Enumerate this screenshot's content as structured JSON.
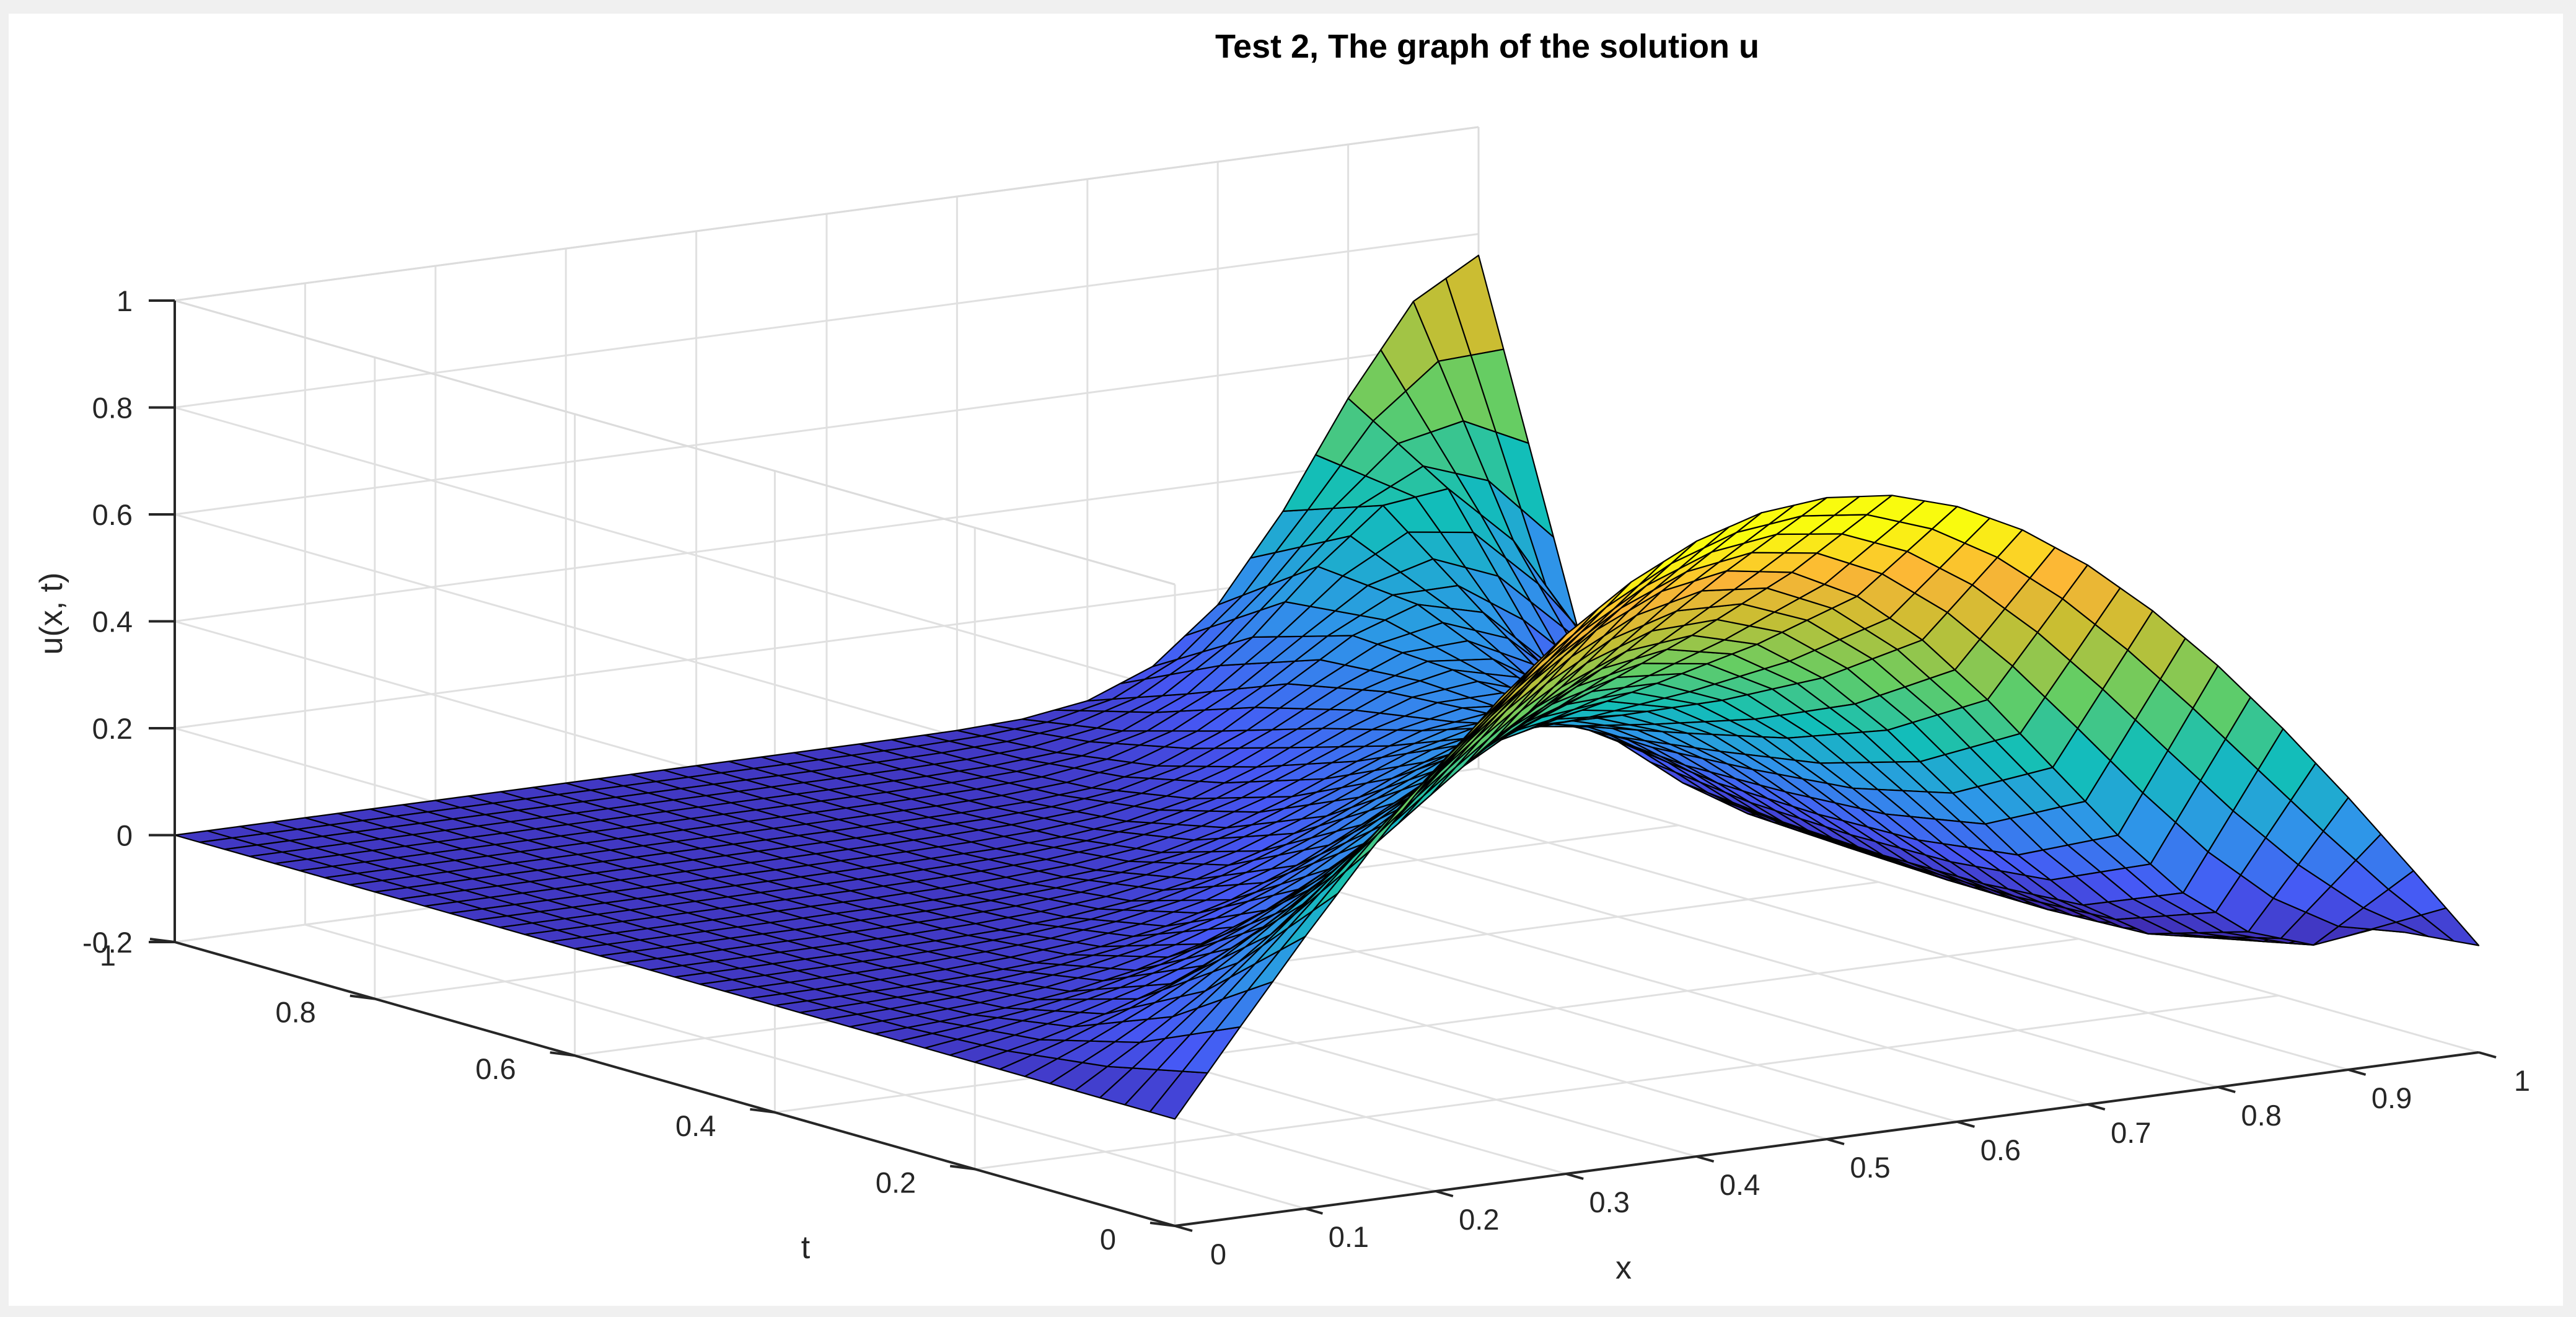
{
  "chart_data": {
    "type": "surface",
    "title": "Test 2, The graph of the solution u",
    "xlabel": "x",
    "ylabel": "t",
    "zlabel": "u(x, t)",
    "xlim": [
      0,
      1
    ],
    "ylim": [
      0,
      1
    ],
    "zlim": [
      -0.2,
      1
    ],
    "x_ticks": [
      "0",
      "0.1",
      "0.2",
      "0.3",
      "0.4",
      "0.5",
      "0.6",
      "0.7",
      "0.8",
      "0.9",
      "1"
    ],
    "y_ticks": [
      "0",
      "0.2",
      "0.4",
      "0.6",
      "0.8",
      "1"
    ],
    "z_ticks": [
      "-0.2",
      "0",
      "0.2",
      "0.4",
      "0.6",
      "0.8",
      "1"
    ],
    "grid": true,
    "colormap": "parula",
    "edge_color": "#000000",
    "surface": {
      "x": [
        0,
        0.05,
        0.1,
        0.15,
        0.2,
        0.25,
        0.3,
        0.35,
        0.4,
        0.45,
        0.5,
        0.55,
        0.6,
        0.65,
        0.7,
        0.75,
        0.8,
        0.85,
        0.9,
        0.95,
        1
      ],
      "t": [
        0,
        0.1,
        0.2,
        0.3,
        0.4,
        0.5,
        0.6,
        0.7,
        0.8,
        0.9,
        1
      ],
      "u": [
        [
          0,
          0.156,
          0.309,
          0.454,
          0.588,
          0.707,
          0.809,
          0.891,
          0.951,
          0.988,
          1,
          0.988,
          0.951,
          0.891,
          0.809,
          0.707,
          0.588,
          0.454,
          0.309,
          0.156,
          0
        ],
        [
          0,
          0.074,
          0.154,
          0.243,
          0.341,
          0.446,
          0.552,
          0.65,
          0.732,
          0.788,
          0.81,
          0.791,
          0.73,
          0.632,
          0.504,
          0.361,
          0.218,
          0.094,
          0.005,
          -0.036,
          -0.02
        ],
        [
          0,
          0.026,
          0.058,
          0.098,
          0.15,
          0.216,
          0.296,
          0.387,
          0.478,
          0.556,
          0.607,
          0.62,
          0.587,
          0.508,
          0.394,
          0.26,
          0.128,
          0.018,
          -0.052,
          -0.076,
          -0.045
        ],
        [
          0,
          0.007,
          0.016,
          0.031,
          0.054,
          0.087,
          0.134,
          0.196,
          0.272,
          0.352,
          0.421,
          0.462,
          0.461,
          0.413,
          0.326,
          0.216,
          0.103,
          0.005,
          -0.06,
          -0.082,
          -0.05
        ],
        [
          0,
          0.001,
          0.003,
          0.007,
          0.015,
          0.029,
          0.051,
          0.084,
          0.132,
          0.192,
          0.257,
          0.312,
          0.341,
          0.332,
          0.282,
          0.198,
          0.098,
          0.005,
          -0.058,
          -0.08,
          -0.05
        ],
        [
          0,
          0,
          0.001,
          0.001,
          0.003,
          0.007,
          0.015,
          0.029,
          0.053,
          0.09,
          0.139,
          0.193,
          0.238,
          0.258,
          0.241,
          0.186,
          0.103,
          0.014,
          -0.05,
          -0.073,
          -0.045
        ],
        [
          0,
          0,
          0,
          0,
          0.001,
          0.001,
          0.003,
          0.008,
          0.017,
          0.034,
          0.064,
          0.106,
          0.156,
          0.197,
          0.213,
          0.192,
          0.128,
          0.034,
          -0.04,
          -0.068,
          -0.042
        ],
        [
          0,
          0,
          0,
          0,
          0,
          0,
          0.001,
          0.002,
          0.004,
          0.01,
          0.023,
          0.049,
          0.092,
          0.148,
          0.2,
          0.225,
          0.195,
          0.106,
          0.012,
          -0.045,
          -0.035
        ],
        [
          0,
          0,
          0,
          0,
          0,
          0,
          0,
          0,
          0.001,
          0.002,
          0.006,
          0.016,
          0.041,
          0.09,
          0.162,
          0.236,
          0.278,
          0.247,
          0.135,
          0.023,
          -0.02
        ],
        [
          0,
          0,
          0,
          0,
          0,
          0,
          0,
          0,
          0,
          0,
          0.001,
          0.004,
          0.013,
          0.037,
          0.09,
          0.18,
          0.296,
          0.394,
          0.409,
          0.296,
          0.11
        ],
        [
          0,
          0,
          0,
          0,
          0,
          0,
          0,
          0,
          0,
          0,
          0,
          0,
          0.001,
          0.006,
          0.024,
          0.072,
          0.171,
          0.33,
          0.525,
          0.69,
          0.76
        ]
      ]
    }
  }
}
